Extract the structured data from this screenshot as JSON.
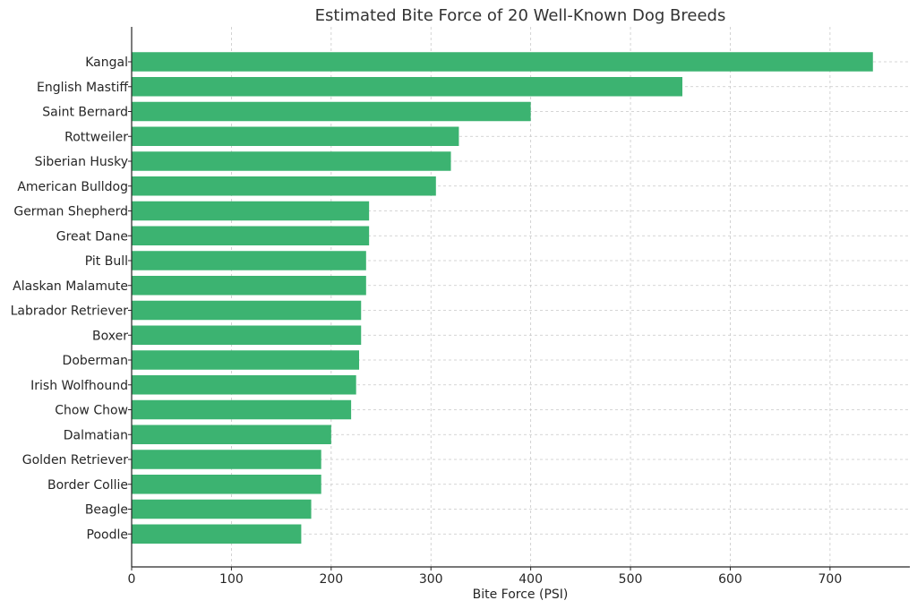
{
  "chart_data": {
    "type": "bar",
    "orientation": "horizontal",
    "title": "Estimated Bite Force of 20 Well-Known Dog Breeds",
    "xlabel": "Bite Force (PSI)",
    "ylabel": "",
    "xlim": [
      0,
      780
    ],
    "xticks": [
      0,
      100,
      200,
      300,
      400,
      500,
      600,
      700
    ],
    "grid": true,
    "bar_color": "#3cb371",
    "categories": [
      "Kangal",
      "English Mastiff",
      "Saint Bernard",
      "Rottweiler",
      "Siberian Husky",
      "American Bulldog",
      "German Shepherd",
      "Great Dane",
      "Pit Bull",
      "Alaskan Malamute",
      "Labrador Retriever",
      "Boxer",
      "Doberman",
      "Irish Wolfhound",
      "Chow Chow",
      "Dalmatian",
      "Golden Retriever",
      "Border Collie",
      "Beagle",
      "Poodle"
    ],
    "values": [
      743,
      552,
      400,
      328,
      320,
      305,
      238,
      238,
      235,
      235,
      230,
      230,
      228,
      225,
      220,
      200,
      190,
      190,
      180,
      170
    ]
  }
}
